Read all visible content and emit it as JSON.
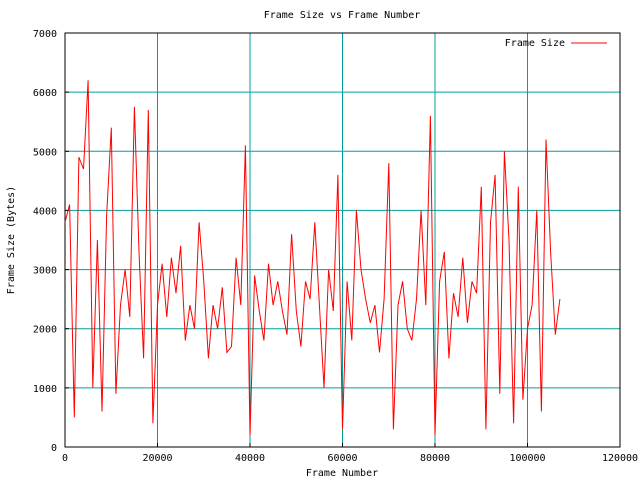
{
  "chart_data": {
    "type": "line",
    "title": "Frame Size vs Frame Number",
    "xlabel": "Frame Number",
    "ylabel": "Frame Size (Bytes)",
    "xlim": [
      0,
      120000
    ],
    "ylim": [
      0,
      7000
    ],
    "x_ticks": [
      0,
      20000,
      40000,
      60000,
      80000,
      100000,
      120000
    ],
    "y_ticks": [
      0,
      1000,
      2000,
      3000,
      4000,
      5000,
      6000,
      7000
    ],
    "x_tick_labels": [
      "0",
      "20000",
      "40000",
      "60000",
      "80000",
      "100000",
      "120000"
    ],
    "y_tick_labels": [
      "0",
      "1000",
      "2000",
      "3000",
      "4000",
      "5000",
      "6000",
      "7000"
    ],
    "grid": true,
    "grid_color": "#00a0a0",
    "legend_position": "top-right",
    "series": [
      {
        "name": "Frame Size",
        "color": "#ff0000",
        "x": [
          0,
          1000,
          2000,
          3000,
          4000,
          5000,
          6000,
          7000,
          8000,
          9000,
          10000,
          11000,
          12000,
          13000,
          14000,
          15000,
          16000,
          17000,
          18000,
          19000,
          20000,
          21000,
          22000,
          23000,
          24000,
          25000,
          26000,
          27000,
          28000,
          29000,
          30000,
          31000,
          32000,
          33000,
          34000,
          35000,
          36000,
          37000,
          38000,
          39000,
          40000,
          41000,
          42000,
          43000,
          44000,
          45000,
          46000,
          47000,
          48000,
          49000,
          50000,
          51000,
          52000,
          53000,
          54000,
          55000,
          56000,
          57000,
          58000,
          59000,
          60000,
          61000,
          62000,
          63000,
          64000,
          65000,
          66000,
          67000,
          68000,
          69000,
          70000,
          71000,
          72000,
          73000,
          74000,
          75000,
          76000,
          77000,
          78000,
          79000,
          80000,
          81000,
          82000,
          83000,
          84000,
          85000,
          86000,
          87000,
          88000,
          89000,
          90000,
          91000,
          92000,
          93000,
          94000,
          95000,
          96000,
          97000,
          98000,
          99000,
          100000,
          101000,
          102000,
          103000,
          104000,
          105000,
          106000,
          107000
        ],
        "values": [
          3800,
          4100,
          500,
          4900,
          4700,
          6200,
          1000,
          3500,
          600,
          3900,
          5400,
          900,
          2400,
          3000,
          2200,
          5750,
          3300,
          1500,
          5700,
          400,
          2400,
          3100,
          2200,
          3200,
          2600,
          3400,
          1800,
          2400,
          2000,
          3800,
          2800,
          1500,
          2400,
          2000,
          2700,
          1600,
          1700,
          3200,
          2400,
          5100,
          200,
          2900,
          2300,
          1800,
          3100,
          2400,
          2800,
          2300,
          1900,
          3600,
          2300,
          1700,
          2800,
          2500,
          3800,
          2400,
          1000,
          3000,
          2300,
          4600,
          300,
          2800,
          1800,
          4000,
          3000,
          2500,
          2100,
          2400,
          1600,
          2500,
          4800,
          300,
          2400,
          2800,
          2000,
          1800,
          2500,
          4000,
          2400,
          5600,
          200,
          2800,
          3300,
          1500,
          2600,
          2200,
          3200,
          2100,
          2800,
          2600,
          4400,
          300,
          3800,
          4600,
          900,
          5000,
          3500,
          400,
          4400,
          800,
          2000,
          2400,
          4000,
          600,
          5200,
          3300,
          1900,
          2500
        ]
      }
    ]
  }
}
